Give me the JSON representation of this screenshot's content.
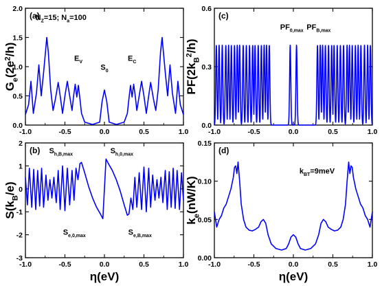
{
  "figure": {
    "x_axis_label": "η(eV)",
    "style": {
      "line_color": "#0000ff",
      "axis_color": "#000000",
      "background": "#ffffff"
    }
  },
  "chart_data": [
    {
      "panel": "(a)",
      "type": "line",
      "ylabel": "G_e(2e^2/h)",
      "xlabel": "η(eV)",
      "xlim": [
        -1.0,
        1.0
      ],
      "ylim": [
        0.0,
        2.0
      ],
      "x_ticks": [
        "-1.0",
        "-0.5",
        "0.0",
        "0.5",
        "1.0"
      ],
      "y_ticks": [
        "0.0",
        "0.5",
        "1.0",
        "1.5",
        "2.0"
      ],
      "annotations": [
        {
          "label": "N_Z=15; N_a=100",
          "x": -0.55,
          "y": 1.8
        },
        {
          "label": "E_V",
          "x": -0.33,
          "y": 1.1
        },
        {
          "label": "S_0",
          "x": 0.0,
          "y": 0.95
        },
        {
          "label": "E_C",
          "x": 0.35,
          "y": 1.1
        }
      ],
      "points": [
        [
          -1.0,
          0.18
        ],
        [
          -0.96,
          0.35
        ],
        [
          -0.93,
          0.75
        ],
        [
          -0.9,
          0.2
        ],
        [
          -0.86,
          0.55
        ],
        [
          -0.83,
          1.03
        ],
        [
          -0.8,
          0.5
        ],
        [
          -0.77,
          0.9
        ],
        [
          -0.745,
          1.27
        ],
        [
          -0.73,
          1.5
        ],
        [
          -0.71,
          1.25
        ],
        [
          -0.68,
          0.6
        ],
        [
          -0.65,
          0.25
        ],
        [
          -0.62,
          0.45
        ],
        [
          -0.585,
          0.73
        ],
        [
          -0.56,
          0.5
        ],
        [
          -0.53,
          0.2
        ],
        [
          -0.5,
          0.5
        ],
        [
          -0.47,
          0.75
        ],
        [
          -0.44,
          0.5
        ],
        [
          -0.41,
          0.25
        ],
        [
          -0.39,
          0.5
        ],
        [
          -0.37,
          0.7
        ],
        [
          -0.35,
          0.48
        ],
        [
          -0.33,
          0.68
        ],
        [
          -0.31,
          0.45
        ],
        [
          -0.29,
          0.2
        ],
        [
          -0.25,
          0.05
        ],
        [
          -0.15,
          0.01
        ],
        [
          -0.06,
          0.05
        ],
        [
          -0.03,
          0.4
        ],
        [
          0.0,
          0.6
        ],
        [
          0.03,
          0.4
        ],
        [
          0.06,
          0.05
        ],
        [
          0.15,
          0.01
        ],
        [
          0.25,
          0.05
        ],
        [
          0.29,
          0.2
        ],
        [
          0.31,
          0.45
        ],
        [
          0.33,
          0.68
        ],
        [
          0.35,
          0.48
        ],
        [
          0.37,
          0.7
        ],
        [
          0.39,
          0.5
        ],
        [
          0.41,
          0.25
        ],
        [
          0.44,
          0.5
        ],
        [
          0.47,
          0.75
        ],
        [
          0.5,
          0.5
        ],
        [
          0.53,
          0.2
        ],
        [
          0.56,
          0.5
        ],
        [
          0.585,
          0.73
        ],
        [
          0.62,
          0.45
        ],
        [
          0.65,
          0.25
        ],
        [
          0.68,
          0.6
        ],
        [
          0.71,
          1.25
        ],
        [
          0.73,
          1.5
        ],
        [
          0.745,
          1.27
        ],
        [
          0.77,
          0.9
        ],
        [
          0.8,
          0.5
        ],
        [
          0.83,
          1.03
        ],
        [
          0.86,
          0.55
        ],
        [
          0.9,
          0.2
        ],
        [
          0.93,
          0.75
        ],
        [
          0.96,
          0.35
        ],
        [
          1.0,
          0.18
        ]
      ]
    },
    {
      "panel": "(c)",
      "type": "line",
      "ylabel": "PF(2k_B^2/h)",
      "xlabel": "η(eV)",
      "xlim": [
        -1.0,
        1.0
      ],
      "ylim": [
        0.0,
        0.6
      ],
      "x_ticks": [
        "-1.0",
        "-0.5",
        "0.0",
        "0.5",
        "1.0"
      ],
      "y_ticks": [
        "0.0",
        "0.3",
        "0.6"
      ],
      "annotations": [
        {
          "label": "PF_0,max",
          "x": -0.02,
          "y": 0.49
        },
        {
          "label": "PF_B,max",
          "x": 0.32,
          "y": 0.49
        }
      ],
      "peaks": [
        -0.975,
        -0.94,
        -0.9,
        -0.855,
        -0.82,
        -0.785,
        -0.745,
        -0.71,
        -0.68,
        -0.635,
        -0.595,
        -0.555,
        -0.515,
        -0.485,
        -0.445,
        -0.405,
        -0.37,
        -0.34,
        -0.305,
        -0.04,
        0.04,
        0.305,
        0.34,
        0.37,
        0.405,
        0.445,
        0.485,
        0.515,
        0.555,
        0.595,
        0.635,
        0.68,
        0.71,
        0.745,
        0.785,
        0.82,
        0.855,
        0.9,
        0.94,
        0.975
      ],
      "peak_height": 0.41
    },
    {
      "panel": "(b)",
      "type": "line",
      "ylabel": "S(k_B/e)",
      "xlabel": "η(eV)",
      "xlim": [
        -1.0,
        1.0
      ],
      "ylim": [
        -3.0,
        2.0
      ],
      "x_ticks": [
        "-1.0",
        "-0.5",
        "0.0",
        "0.5",
        "1.0"
      ],
      "y_ticks": [
        "-3",
        "-2",
        "-1",
        "0",
        "1",
        "2"
      ],
      "annotations": [
        {
          "label": "S_h,B,max",
          "x": -0.55,
          "y": 1.55
        },
        {
          "label": "S_h,0,max",
          "x": 0.22,
          "y": 1.55
        },
        {
          "label": "S_e,0,max",
          "x": -0.38,
          "y": -2.0
        },
        {
          "label": "S_e,B,max",
          "x": 0.45,
          "y": -2.0
        }
      ],
      "points": [
        [
          -1.0,
          0.5
        ],
        [
          -0.975,
          -0.7
        ],
        [
          -0.95,
          0.9
        ],
        [
          -0.92,
          -0.8
        ],
        [
          -0.895,
          0.85
        ],
        [
          -0.87,
          -0.9
        ],
        [
          -0.845,
          0.8
        ],
        [
          -0.82,
          -0.75
        ],
        [
          -0.795,
          0.9
        ],
        [
          -0.77,
          -0.8
        ],
        [
          -0.74,
          0.6
        ],
        [
          -0.715,
          -0.5
        ],
        [
          -0.69,
          0.4
        ],
        [
          -0.665,
          -0.4
        ],
        [
          -0.64,
          0.5
        ],
        [
          -0.61,
          -0.6
        ],
        [
          -0.585,
          0.8
        ],
        [
          -0.56,
          -0.9
        ],
        [
          -0.53,
          1.0
        ],
        [
          -0.5,
          -0.95
        ],
        [
          -0.47,
          0.9
        ],
        [
          -0.44,
          -0.7
        ],
        [
          -0.41,
          0.8
        ],
        [
          -0.385,
          -0.5
        ],
        [
          -0.36,
          0.9
        ],
        [
          -0.335,
          0.4
        ],
        [
          -0.31,
          1.1
        ],
        [
          -0.29,
          1.15
        ],
        [
          -0.25,
          0.7
        ],
        [
          -0.2,
          0.1
        ],
        [
          -0.15,
          -0.4
        ],
        [
          -0.1,
          -0.8
        ],
        [
          -0.05,
          -1.1
        ],
        [
          -0.02,
          -1.3
        ],
        [
          0.0,
          0.0
        ],
        [
          0.02,
          1.3
        ],
        [
          0.05,
          1.1
        ],
        [
          0.1,
          0.8
        ],
        [
          0.15,
          0.4
        ],
        [
          0.2,
          -0.1
        ],
        [
          0.25,
          -0.7
        ],
        [
          0.29,
          -1.15
        ],
        [
          0.31,
          -1.1
        ],
        [
          0.335,
          -0.4
        ],
        [
          0.36,
          -0.9
        ],
        [
          0.385,
          0.5
        ],
        [
          0.41,
          -0.8
        ],
        [
          0.44,
          0.7
        ],
        [
          0.47,
          -0.9
        ],
        [
          0.5,
          0.95
        ],
        [
          0.53,
          -1.0
        ],
        [
          0.56,
          0.9
        ],
        [
          0.585,
          -0.8
        ],
        [
          0.61,
          0.6
        ],
        [
          0.64,
          -0.5
        ],
        [
          0.665,
          0.4
        ],
        [
          0.69,
          -0.4
        ],
        [
          0.715,
          0.5
        ],
        [
          0.74,
          -0.6
        ],
        [
          0.77,
          0.8
        ],
        [
          0.795,
          -0.9
        ],
        [
          0.82,
          0.75
        ],
        [
          0.845,
          -0.8
        ],
        [
          0.87,
          0.9
        ],
        [
          0.895,
          -0.85
        ],
        [
          0.92,
          0.8
        ],
        [
          0.95,
          -0.9
        ],
        [
          0.975,
          0.7
        ],
        [
          1.0,
          -0.5
        ]
      ]
    },
    {
      "panel": "(d)",
      "type": "line",
      "ylabel": "k_e(nW/K)",
      "xlabel": "η(eV)",
      "xlim": [
        -1.0,
        1.0
      ],
      "ylim": [
        0.0,
        0.15
      ],
      "x_ticks": [
        "-1.0",
        "-0.5",
        "0.0",
        "0.5",
        "1.0"
      ],
      "y_ticks": [
        "0.00",
        "0.05",
        "0.10",
        "0.15"
      ],
      "annotations": [
        {
          "label": "k_BT=9meV",
          "x": 0.3,
          "y": 0.11
        }
      ],
      "points": [
        [
          -1.0,
          0.06
        ],
        [
          -0.97,
          0.04
        ],
        [
          -0.94,
          0.05
        ],
        [
          -0.91,
          0.055
        ],
        [
          -0.88,
          0.065
        ],
        [
          -0.85,
          0.07
        ],
        [
          -0.82,
          0.08
        ],
        [
          -0.79,
          0.09
        ],
        [
          -0.76,
          0.105
        ],
        [
          -0.745,
          0.118
        ],
        [
          -0.73,
          0.12
        ],
        [
          -0.715,
          0.11
        ],
        [
          -0.7,
          0.125
        ],
        [
          -0.68,
          0.1
        ],
        [
          -0.66,
          0.07
        ],
        [
          -0.63,
          0.05
        ],
        [
          -0.6,
          0.04
        ],
        [
          -0.56,
          0.036
        ],
        [
          -0.52,
          0.035
        ],
        [
          -0.48,
          0.037
        ],
        [
          -0.44,
          0.04
        ],
        [
          -0.41,
          0.047
        ],
        [
          -0.38,
          0.05
        ],
        [
          -0.35,
          0.045
        ],
        [
          -0.32,
          0.03
        ],
        [
          -0.28,
          0.018
        ],
        [
          -0.22,
          0.012
        ],
        [
          -0.15,
          0.01
        ],
        [
          -0.09,
          0.012
        ],
        [
          -0.06,
          0.018
        ],
        [
          -0.03,
          0.027
        ],
        [
          0.0,
          0.03
        ],
        [
          0.03,
          0.027
        ],
        [
          0.06,
          0.018
        ],
        [
          0.09,
          0.012
        ],
        [
          0.15,
          0.01
        ],
        [
          0.22,
          0.012
        ],
        [
          0.28,
          0.018
        ],
        [
          0.32,
          0.03
        ],
        [
          0.35,
          0.045
        ],
        [
          0.38,
          0.05
        ],
        [
          0.41,
          0.047
        ],
        [
          0.44,
          0.04
        ],
        [
          0.48,
          0.037
        ],
        [
          0.52,
          0.035
        ],
        [
          0.56,
          0.036
        ],
        [
          0.6,
          0.04
        ],
        [
          0.63,
          0.05
        ],
        [
          0.66,
          0.07
        ],
        [
          0.68,
          0.1
        ],
        [
          0.7,
          0.125
        ],
        [
          0.715,
          0.11
        ],
        [
          0.73,
          0.12
        ],
        [
          0.745,
          0.118
        ],
        [
          0.76,
          0.105
        ],
        [
          0.79,
          0.09
        ],
        [
          0.82,
          0.08
        ],
        [
          0.85,
          0.07
        ],
        [
          0.88,
          0.065
        ],
        [
          0.91,
          0.055
        ],
        [
          0.94,
          0.05
        ],
        [
          0.97,
          0.04
        ],
        [
          1.0,
          0.06
        ]
      ]
    }
  ]
}
